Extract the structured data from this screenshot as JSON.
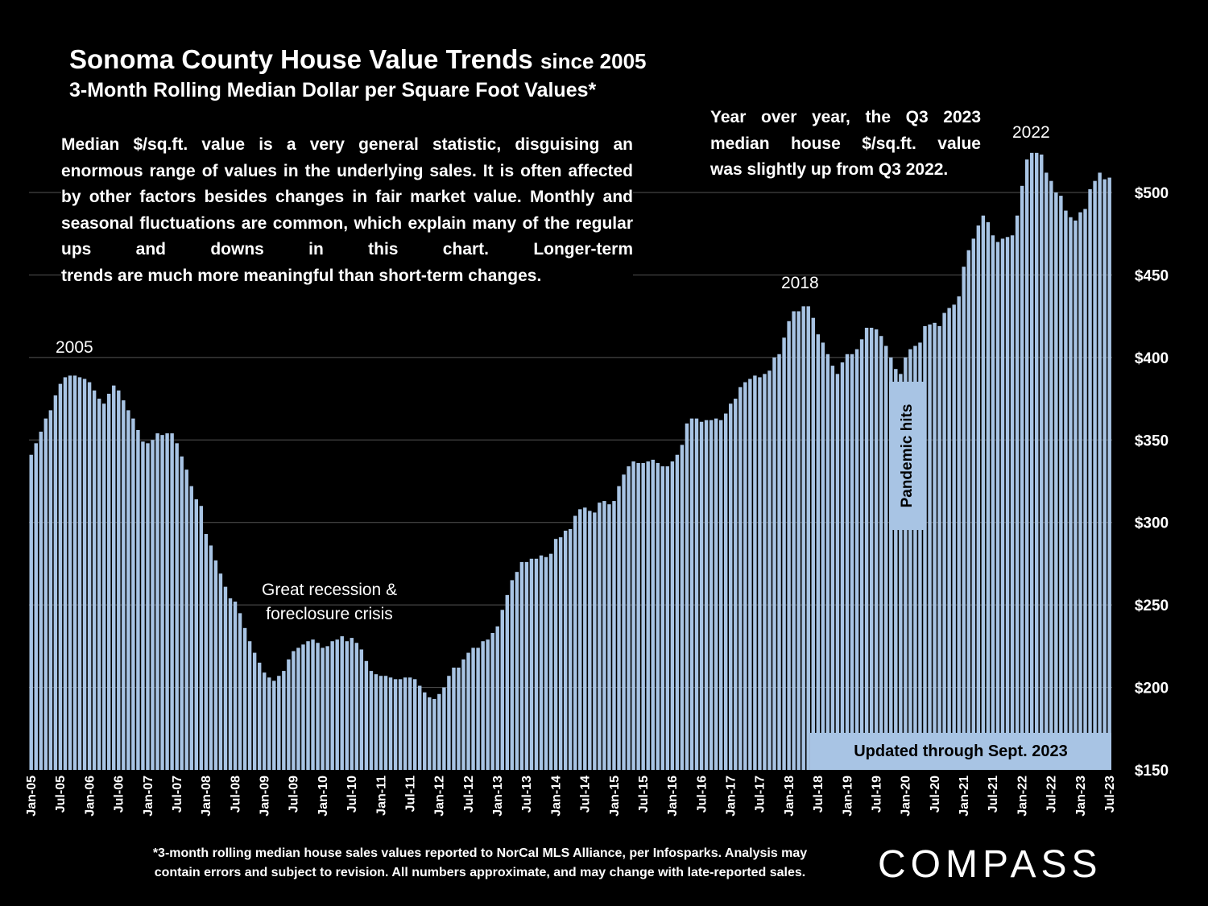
{
  "header": {
    "title_main": "Sonoma County House Value Trends",
    "title_small": "since 2005",
    "subtitle": "3-Month Rolling Median Dollar per Square Foot Values*"
  },
  "notes": {
    "left_lines": [
      "Median $/sq.ft. value is a very general statistic, disguising an",
      "enormous range of values in the underlying sales. It is often",
      "affected by other factors besides changes in fair market value.",
      "Monthly and seasonal fluctuations are common, which explain",
      "many of the regular ups and downs in this chart. Longer-term",
      "trends are much more meaningful than short-term changes."
    ],
    "right_lines": [
      "Year over year, the Q3 2023",
      "median house $/sq.ft. value",
      "was slightly up from Q3 2022."
    ]
  },
  "annotations": {
    "y2005": "2005",
    "y2018": "2018",
    "y2022": "2022",
    "recession_1": "Great recession &",
    "recession_2": "foreclosure crisis",
    "pandemic": "Pandemic hits",
    "updated": "Updated through Sept. 2023"
  },
  "footnote": {
    "line1": "*3-month rolling median house sales values reported to NorCal MLS Alliance, per Infosparks. Analysis may",
    "line2": "contain errors and subject to revision. All numbers approximate, and may change with late-reported sales."
  },
  "logo": "COMPASS",
  "colors": {
    "bar": "#a8c4e4",
    "background": "#000000",
    "grid": "#555555",
    "text": "#ffffff"
  },
  "chart_data": {
    "type": "bar",
    "title": "Sonoma County House Value Trends since 2005",
    "subtitle": "3-Month Rolling Median Dollar per Square Foot Values*",
    "ylim": [
      150,
      500
    ],
    "yticks": [
      "$150",
      "$200",
      "$250",
      "$300",
      "$350",
      "$400",
      "$450",
      "$500"
    ],
    "ytick_values": [
      150,
      200,
      250,
      300,
      350,
      400,
      450,
      500
    ],
    "start": "Jan-05",
    "end": "Sep-23",
    "xtick_labels": [
      "Jan-05",
      "Jul-05",
      "Jan-06",
      "Jul-06",
      "Jan-07",
      "Jul-07",
      "Jan-08",
      "Jul-08",
      "Jan-09",
      "Jul-09",
      "Jan-10",
      "Jul-10",
      "Jan-11",
      "Jul-11",
      "Jan-12",
      "Jul-12",
      "Jan-13",
      "Jul-13",
      "Jan-14",
      "Jul-14",
      "Jan-15",
      "Jul-15",
      "Jan-16",
      "Jul-16",
      "Jan-17",
      "Jul-17",
      "Jan-18",
      "Jul-18",
      "Jan-19",
      "Jul-19",
      "Jan-20",
      "Jul-20",
      "Jan-21",
      "Jul-21",
      "Jan-22",
      "Jul-22",
      "Jan-23",
      "Jul-23"
    ],
    "values": [
      341,
      348,
      355,
      363,
      368,
      377,
      384,
      388,
      389,
      389,
      388,
      387,
      385,
      380,
      375,
      372,
      378,
      383,
      380,
      374,
      368,
      363,
      356,
      349,
      348,
      350,
      354,
      353,
      354,
      354,
      348,
      340,
      332,
      322,
      314,
      310,
      293,
      286,
      277,
      269,
      261,
      254,
      252,
      245,
      236,
      228,
      221,
      215,
      209,
      206,
      204,
      207,
      210,
      217,
      222,
      224,
      226,
      228,
      229,
      227,
      224,
      225,
      228,
      229,
      231,
      228,
      230,
      227,
      223,
      216,
      210,
      208,
      207,
      207,
      206,
      205,
      205,
      206,
      206,
      205,
      201,
      197,
      194,
      193,
      196,
      200,
      207,
      212,
      212,
      217,
      221,
      224,
      224,
      228,
      229,
      233,
      237,
      247,
      256,
      265,
      270,
      276,
      276,
      278,
      278,
      280,
      279,
      281,
      290,
      291,
      295,
      296,
      304,
      308,
      309,
      307,
      306,
      312,
      313,
      311,
      313,
      322,
      329,
      334,
      337,
      336,
      336,
      337,
      338,
      336,
      334,
      334,
      337,
      341,
      347,
      360,
      363,
      363,
      361,
      362,
      362,
      363,
      362,
      366,
      372,
      375,
      382,
      385,
      387,
      389,
      388,
      390,
      392,
      400,
      402,
      412,
      422,
      428,
      428,
      431,
      431,
      424,
      414,
      409,
      402,
      395,
      390,
      397,
      402,
      402,
      405,
      411,
      418,
      418,
      417,
      413,
      407,
      400,
      393,
      390,
      400,
      405,
      407,
      409,
      419,
      420,
      421,
      419,
      427,
      430,
      432,
      437,
      455,
      465,
      472,
      480,
      486,
      482,
      474,
      470,
      472,
      473,
      474,
      486,
      504,
      520,
      524,
      524,
      523,
      512,
      507,
      500,
      498,
      489,
      485,
      483,
      488,
      490,
      502,
      507,
      512,
      508,
      509
    ]
  }
}
